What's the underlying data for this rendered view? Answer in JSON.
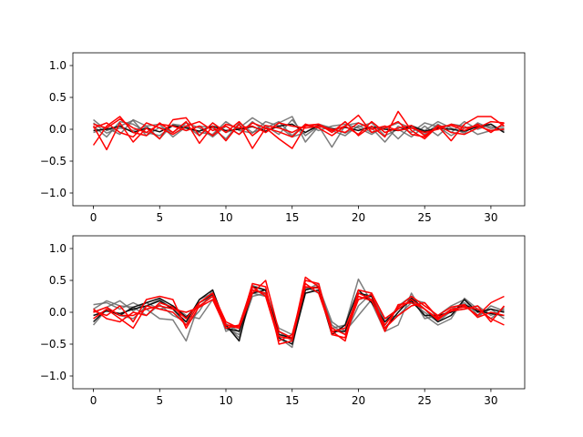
{
  "chart_data": [
    {
      "type": "line",
      "title": "",
      "xlabel": "",
      "ylabel": "",
      "xlim": [
        -1.55,
        32.55
      ],
      "ylim": [
        -1.2,
        1.2
      ],
      "xticks": [
        0,
        5,
        10,
        15,
        20,
        25,
        30
      ],
      "yticks": [
        -1.0,
        -0.5,
        0.0,
        0.5,
        1.0
      ],
      "ytick_labels": [
        "−1.0",
        "−0.5",
        "0.0",
        "0.5",
        "1.0"
      ],
      "grid": false,
      "colors": {
        "gray": "#666666",
        "black": "#111111",
        "red": "#ff0000"
      },
      "series": [
        {
          "color": "gray",
          "values": [
            0.15,
            -0.02,
            0.05,
            0.14,
            -0.1,
            0.03,
            -0.05,
            0.1,
            0.02,
            -0.12,
            0.05,
            -0.08,
            0.12,
            -0.05,
            0.1,
            0.2,
            -0.2,
            0.05,
            -0.28,
            0.06,
            0.1,
            0.02,
            -0.2,
            0.05,
            -0.05,
            0.1,
            0.04,
            -0.1,
            0.02,
            0.06,
            0.04,
            -0.02
          ]
        },
        {
          "color": "gray",
          "values": [
            0.05,
            -0.12,
            0.12,
            0.08,
            -0.05,
            -0.1,
            0.06,
            -0.02,
            0.05,
            0.02,
            -0.15,
            0.1,
            -0.05,
            0.02,
            0.12,
            -0.1,
            0.08,
            -0.02,
            0.05,
            0.08,
            0.02,
            -0.08,
            0.05,
            -0.15,
            0.06,
            -0.02,
            0.12,
            0.02,
            -0.06,
            0.1,
            0.01,
            0.05
          ]
        },
        {
          "color": "gray",
          "values": [
            -0.05,
            0.02,
            -0.08,
            0.15,
            0.05,
            -0.15,
            0.08,
            0.05,
            -0.1,
            0.1,
            -0.05,
            0.02,
            0.18,
            0.05,
            -0.08,
            0.15,
            -0.1,
            0.05,
            -0.02,
            -0.1,
            0.06,
            -0.05,
            0.02,
            0.1,
            0.02,
            -0.08,
            0.08,
            -0.05,
            0.12,
            0.0,
            0.08,
            -0.05
          ]
        },
        {
          "color": "gray",
          "values": [
            0.1,
            -0.06,
            0.02,
            -0.02,
            0.05,
            0.08,
            -0.12,
            0.04,
            -0.05,
            -0.08,
            0.12,
            -0.02,
            -0.06,
            0.12,
            0.05,
            -0.12,
            -0.05,
            0.08,
            0.02,
            -0.06,
            0.04,
            0.1,
            -0.1,
            0.0,
            -0.12,
            0.05,
            -0.1,
            0.08,
            0.05,
            -0.08,
            -0.02,
            0.02
          ]
        },
        {
          "color": "black",
          "values": [
            -0.02,
            0.0,
            0.05,
            -0.05,
            0.02,
            -0.04,
            0.06,
            0.02,
            -0.03,
            0.05,
            -0.02,
            0.0,
            0.04,
            -0.03,
            0.05,
            0.08,
            -0.05,
            0.06,
            0.0,
            0.03,
            -0.02,
            0.04,
            0.0,
            -0.02,
            0.05,
            -0.03,
            0.02,
            0.0,
            -0.03,
            0.04,
            0.08,
            -0.05
          ]
        },
        {
          "color": "red",
          "values": [
            -0.25,
            0.05,
            0.2,
            -0.05,
            -0.1,
            0.1,
            -0.05,
            0.12,
            -0.22,
            0.05,
            -0.18,
            0.08,
            -0.3,
            0.02,
            -0.15,
            -0.3,
            0.05,
            0.08,
            -0.05,
            0.12,
            -0.1,
            0.05,
            -0.12,
            0.28,
            -0.02,
            -0.15,
            0.05,
            -0.18,
            0.08,
            0.2,
            0.2,
            0.05
          ]
        },
        {
          "color": "red",
          "values": [
            0.05,
            -0.32,
            0.1,
            -0.2,
            0.02,
            -0.15,
            0.15,
            0.18,
            -0.1,
            0.1,
            -0.05,
            0.12,
            -0.1,
            0.06,
            0.02,
            -0.05,
            0.06,
            0.08,
            -0.02,
            0.05,
            0.22,
            -0.05,
            0.02,
            0.12,
            -0.08,
            -0.12,
            0.06,
            -0.05,
            -0.08,
            0.02,
            0.12,
            0.1
          ]
        },
        {
          "color": "red",
          "values": [
            0.02,
            0.1,
            -0.05,
            -0.12,
            0.1,
            0.02,
            -0.08,
            0.05,
            0.12,
            -0.02,
            0.05,
            -0.08,
            0.1,
            0.02,
            -0.04,
            -0.12,
            0.08,
            0.02,
            -0.1,
            0.05,
            -0.08,
            0.12,
            -0.05,
            0.02,
            0.06,
            -0.1,
            0.04,
            0.06,
            -0.02,
            0.08,
            -0.05,
            0.1
          ]
        },
        {
          "color": "red",
          "values": [
            0.08,
            0.02,
            0.16,
            0.02,
            -0.05,
            0.08,
            0.05,
            -0.02,
            0.05,
            -0.1,
            0.08,
            0.02,
            0.05,
            -0.05,
            0.1,
            0.05,
            0.02,
            0.05,
            0.0,
            -0.05,
            0.1,
            0.0,
            0.05,
            -0.02,
            0.02,
            -0.05,
            0.0,
            0.08,
            0.02,
            0.05,
            -0.02,
            0.0
          ]
        }
      ]
    },
    {
      "type": "line",
      "title": "",
      "xlabel": "",
      "ylabel": "",
      "xlim": [
        -1.55,
        32.55
      ],
      "ylim": [
        -1.2,
        1.2
      ],
      "xticks": [
        0,
        5,
        10,
        15,
        20,
        25,
        30
      ],
      "yticks": [
        -1.0,
        -0.5,
        0.0,
        0.5,
        1.0
      ],
      "ytick_labels": [
        "−1.0",
        "−0.5",
        "0.0",
        "0.5",
        "1.0"
      ],
      "grid": false,
      "colors": {
        "gray": "#666666",
        "black": "#111111",
        "red": "#ff0000"
      },
      "series": [
        {
          "color": "gray",
          "values": [
            0.12,
            0.15,
            0.05,
            0.15,
            0.05,
            -0.1,
            -0.12,
            -0.45,
            0.15,
            0.25,
            -0.2,
            -0.4,
            0.3,
            0.25,
            -0.4,
            -0.55,
            0.4,
            0.3,
            -0.25,
            -0.2,
            0.52,
            0.15,
            -0.3,
            -0.2,
            0.3,
            -0.05,
            -0.2,
            -0.1,
            0.22,
            0.05,
            -0.1,
            0.08
          ]
        },
        {
          "color": "gray",
          "values": [
            0.05,
            0.18,
            0.1,
            0.08,
            -0.05,
            0.12,
            -0.05,
            -0.15,
            0.2,
            0.3,
            -0.3,
            -0.2,
            0.42,
            0.35,
            -0.3,
            -0.45,
            0.35,
            0.45,
            -0.3,
            -0.25,
            0.2,
            0.25,
            -0.15,
            0.05,
            0.2,
            0.15,
            -0.1,
            0.05,
            0.15,
            -0.08,
            0.1,
            0.02
          ]
        },
        {
          "color": "gray",
          "values": [
            -0.2,
            0.05,
            -0.05,
            -0.1,
            0.1,
            0.2,
            0.05,
            -0.2,
            0.02,
            0.35,
            -0.25,
            -0.35,
            0.25,
            0.3,
            -0.35,
            -0.4,
            0.3,
            0.35,
            -0.2,
            -0.35,
            0.1,
            0.3,
            -0.2,
            0.1,
            0.25,
            -0.1,
            -0.05,
            0.1,
            0.2,
            -0.05,
            0.05,
            -0.1
          ]
        },
        {
          "color": "gray",
          "values": [
            0.0,
            0.08,
            0.18,
            0.02,
            0.15,
            0.05,
            0.1,
            -0.05,
            -0.1,
            0.2,
            -0.18,
            -0.3,
            0.35,
            0.28,
            -0.25,
            -0.35,
            0.38,
            0.4,
            -0.15,
            -0.3,
            -0.05,
            0.2,
            -0.1,
            -0.05,
            0.15,
            0.0,
            -0.15,
            0.02,
            0.05,
            0.1,
            -0.05,
            0.05
          ]
        },
        {
          "color": "black",
          "values": [
            -0.05,
            0.02,
            -0.02,
            0.05,
            0.1,
            0.18,
            0.05,
            -0.15,
            0.2,
            0.35,
            -0.2,
            -0.45,
            0.4,
            0.35,
            -0.35,
            -0.4,
            0.35,
            0.4,
            -0.3,
            -0.3,
            0.3,
            0.25,
            -0.25,
            0.0,
            0.22,
            0.05,
            -0.15,
            -0.05,
            0.2,
            0.0,
            0.05,
            0.0
          ]
        },
        {
          "color": "black",
          "values": [
            -0.15,
            0.05,
            -0.05,
            0.08,
            0.15,
            0.22,
            0.1,
            -0.08,
            0.15,
            0.28,
            -0.25,
            -0.3,
            0.3,
            0.35,
            -0.4,
            -0.5,
            0.3,
            0.35,
            -0.35,
            -0.2,
            0.35,
            0.15,
            -0.15,
            0.05,
            0.18,
            -0.05,
            -0.05,
            0.0,
            0.12,
            0.02,
            -0.02,
            -0.05
          ]
        },
        {
          "color": "red",
          "values": [
            -0.1,
            0.05,
            -0.1,
            -0.25,
            0.1,
            0.05,
            0.0,
            -0.2,
            0.15,
            0.3,
            -0.15,
            -0.25,
            0.45,
            0.4,
            -0.5,
            -0.45,
            0.5,
            0.45,
            -0.35,
            -0.4,
            0.35,
            0.3,
            -0.1,
            0.05,
            0.2,
            0.05,
            -0.1,
            0.02,
            0.1,
            -0.05,
            0.15,
            0.25
          ]
        },
        {
          "color": "red",
          "values": [
            0.02,
            -0.05,
            0.1,
            -0.15,
            0.2,
            0.25,
            0.2,
            -0.25,
            0.1,
            0.25,
            -0.2,
            -0.25,
            0.3,
            0.5,
            -0.3,
            -0.4,
            0.55,
            0.4,
            -0.3,
            -0.45,
            0.3,
            0.2,
            -0.3,
            0.12,
            0.15,
            0.05,
            -0.12,
            0.05,
            0.08,
            0.05,
            -0.1,
            -0.2
          ]
        },
        {
          "color": "red",
          "values": [
            0.0,
            0.08,
            -0.05,
            -0.05,
            0.05,
            0.1,
            0.05,
            0.0,
            0.08,
            0.2,
            -0.25,
            -0.2,
            0.4,
            0.25,
            -0.45,
            -0.35,
            0.45,
            0.3,
            -0.3,
            -0.25,
            0.25,
            0.18,
            -0.2,
            0.08,
            0.25,
            0.1,
            -0.05,
            0.08,
            0.12,
            -0.08,
            0.0,
            -0.05
          ]
        },
        {
          "color": "red",
          "values": [
            0.05,
            -0.1,
            -0.15,
            0.0,
            -0.05,
            0.15,
            0.08,
            -0.1,
            0.15,
            0.3,
            -0.2,
            -0.22,
            0.35,
            0.3,
            -0.38,
            -0.42,
            0.4,
            0.38,
            -0.25,
            -0.35,
            0.2,
            0.28,
            -0.25,
            -0.05,
            0.1,
            0.15,
            -0.08,
            0.02,
            0.05,
            0.1,
            -0.15,
            0.1
          ]
        }
      ]
    }
  ]
}
